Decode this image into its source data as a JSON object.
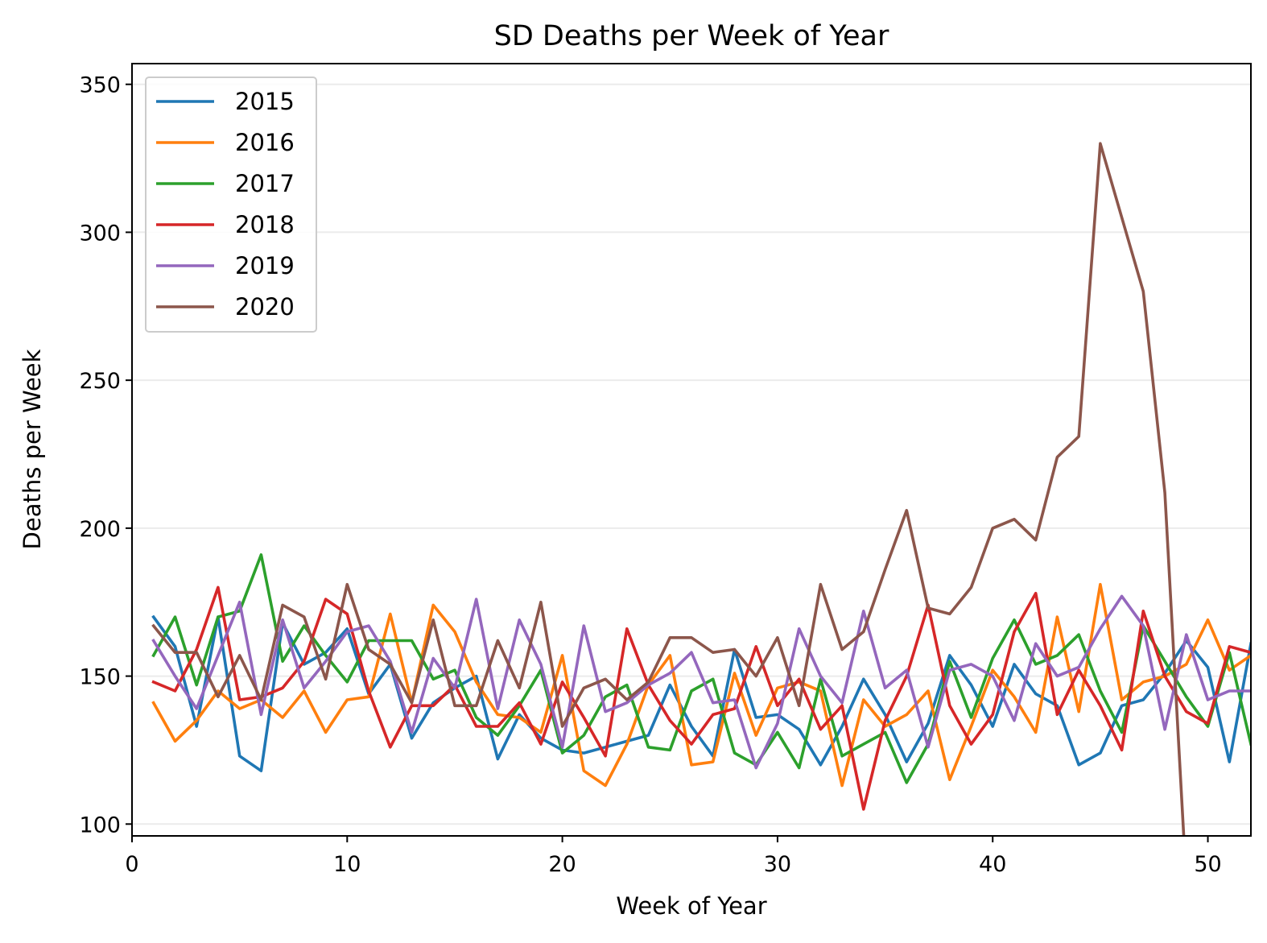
{
  "chart_data": {
    "type": "line",
    "title": "SD Deaths per Week of Year",
    "xlabel": "Week of Year",
    "ylabel": "Deaths per Week",
    "xlim": [
      0,
      52
    ],
    "ylim": [
      96,
      357
    ],
    "xticks": [
      0,
      10,
      20,
      30,
      40,
      50
    ],
    "yticks": [
      100,
      150,
      200,
      250,
      300,
      350
    ],
    "grid": "horizontal",
    "legend_position": "top-left",
    "series": [
      {
        "name": "2015",
        "color": "#1f77b4",
        "x": [
          1,
          2,
          3,
          4,
          5,
          6,
          7,
          8,
          9,
          10,
          11,
          12,
          13,
          14,
          15,
          16,
          17,
          18,
          19,
          20,
          21,
          22,
          23,
          24,
          25,
          26,
          27,
          28,
          29,
          30,
          31,
          32,
          33,
          34,
          35,
          36,
          37,
          38,
          39,
          40,
          41,
          42,
          43,
          44,
          45,
          46,
          47,
          48,
          49,
          50,
          51,
          52
        ],
        "values": [
          170,
          160,
          133,
          170,
          123,
          118,
          168,
          154,
          158,
          166,
          144,
          154,
          129,
          141,
          146,
          150,
          122,
          137,
          129,
          125,
          124,
          126,
          128,
          130,
          147,
          133,
          123,
          159,
          136,
          137,
          132,
          120,
          133,
          149,
          137,
          121,
          134,
          157,
          147,
          133,
          154,
          144,
          140,
          120,
          124,
          140,
          142,
          151,
          162,
          153,
          121,
          161
        ]
      },
      {
        "name": "2016",
        "color": "#ff7f0e",
        "x": [
          1,
          2,
          3,
          4,
          5,
          6,
          7,
          8,
          9,
          10,
          11,
          12,
          13,
          14,
          15,
          16,
          17,
          18,
          19,
          20,
          21,
          22,
          23,
          24,
          25,
          26,
          27,
          28,
          29,
          30,
          31,
          32,
          33,
          34,
          35,
          36,
          37,
          38,
          39,
          40,
          41,
          42,
          43,
          44,
          45,
          46,
          47,
          48,
          49,
          50,
          51,
          52
        ],
        "values": [
          141,
          128,
          135,
          145,
          139,
          142,
          136,
          145,
          131,
          142,
          143,
          171,
          141,
          174,
          165,
          148,
          137,
          136,
          131,
          157,
          118,
          113,
          127,
          147,
          157,
          120,
          121,
          151,
          130,
          146,
          148,
          145,
          113,
          142,
          133,
          137,
          145,
          115,
          133,
          152,
          143,
          131,
          170,
          138,
          181,
          142,
          148,
          150,
          154,
          169,
          152,
          157
        ]
      },
      {
        "name": "2017",
        "color": "#2ca02c",
        "x": [
          1,
          2,
          3,
          4,
          5,
          6,
          7,
          8,
          9,
          10,
          11,
          12,
          13,
          14,
          15,
          16,
          17,
          18,
          19,
          20,
          21,
          22,
          23,
          24,
          25,
          26,
          27,
          28,
          29,
          30,
          31,
          32,
          33,
          34,
          35,
          36,
          37,
          38,
          39,
          40,
          41,
          42,
          43,
          44,
          45,
          46,
          47,
          48,
          49,
          50,
          51,
          52
        ],
        "values": [
          157,
          170,
          147,
          170,
          172,
          191,
          155,
          167,
          157,
          148,
          162,
          162,
          162,
          149,
          152,
          136,
          130,
          140,
          152,
          124,
          130,
          143,
          147,
          126,
          125,
          145,
          149,
          124,
          120,
          131,
          119,
          149,
          123,
          127,
          131,
          114,
          127,
          155,
          136,
          156,
          169,
          154,
          157,
          164,
          145,
          131,
          167,
          155,
          143,
          133,
          158,
          127
        ]
      },
      {
        "name": "2018",
        "color": "#d62728",
        "x": [
          1,
          2,
          3,
          4,
          5,
          6,
          7,
          8,
          9,
          10,
          11,
          12,
          13,
          14,
          15,
          16,
          17,
          18,
          19,
          20,
          21,
          22,
          23,
          24,
          25,
          26,
          27,
          28,
          29,
          30,
          31,
          32,
          33,
          34,
          35,
          36,
          37,
          38,
          39,
          40,
          41,
          42,
          43,
          44,
          45,
          46,
          47,
          48,
          49,
          50,
          51,
          52
        ],
        "values": [
          148,
          145,
          159,
          180,
          142,
          143,
          146,
          155,
          176,
          171,
          145,
          126,
          140,
          140,
          147,
          133,
          133,
          141,
          127,
          148,
          136,
          123,
          166,
          147,
          135,
          127,
          137,
          139,
          160,
          140,
          149,
          132,
          140,
          105,
          135,
          150,
          174,
          140,
          127,
          137,
          165,
          178,
          137,
          152,
          140,
          125,
          172,
          150,
          138,
          134,
          160,
          158
        ]
      },
      {
        "name": "2019",
        "color": "#9467bd",
        "x": [
          1,
          2,
          3,
          4,
          5,
          6,
          7,
          8,
          9,
          10,
          11,
          12,
          13,
          14,
          15,
          16,
          17,
          18,
          19,
          20,
          21,
          22,
          23,
          24,
          25,
          26,
          27,
          28,
          29,
          30,
          31,
          32,
          33,
          34,
          35,
          36,
          37,
          38,
          39,
          40,
          41,
          42,
          43,
          44,
          45,
          46,
          47,
          48,
          49,
          50,
          51,
          52
        ],
        "values": [
          162,
          150,
          139,
          157,
          175,
          137,
          169,
          146,
          155,
          165,
          167,
          155,
          131,
          156,
          146,
          176,
          139,
          169,
          154,
          126,
          167,
          138,
          141,
          147,
          151,
          158,
          141,
          142,
          119,
          134,
          166,
          150,
          141,
          172,
          146,
          152,
          126,
          152,
          154,
          150,
          135,
          161,
          150,
          153,
          166,
          177,
          167,
          132,
          164,
          142,
          145,
          145
        ]
      },
      {
        "name": "2020",
        "color": "#8c564b",
        "x": [
          1,
          2,
          3,
          4,
          5,
          6,
          7,
          8,
          9,
          10,
          11,
          12,
          13,
          14,
          15,
          16,
          17,
          18,
          19,
          20,
          21,
          22,
          23,
          24,
          25,
          26,
          27,
          28,
          29,
          30,
          31,
          32,
          33,
          34,
          35,
          36,
          37,
          38,
          39,
          40,
          41,
          42,
          43,
          44,
          45,
          46,
          47,
          48,
          49
        ],
        "values": [
          167,
          158,
          158,
          143,
          157,
          142,
          174,
          170,
          149,
          181,
          159,
          154,
          141,
          169,
          140,
          140,
          162,
          146,
          175,
          133,
          146,
          149,
          142,
          148,
          163,
          163,
          158,
          159,
          150,
          163,
          140,
          181,
          159,
          165,
          186,
          206,
          173,
          171,
          180,
          200,
          203,
          196,
          224,
          231,
          330,
          305,
          280,
          212,
          80
        ]
      }
    ]
  }
}
